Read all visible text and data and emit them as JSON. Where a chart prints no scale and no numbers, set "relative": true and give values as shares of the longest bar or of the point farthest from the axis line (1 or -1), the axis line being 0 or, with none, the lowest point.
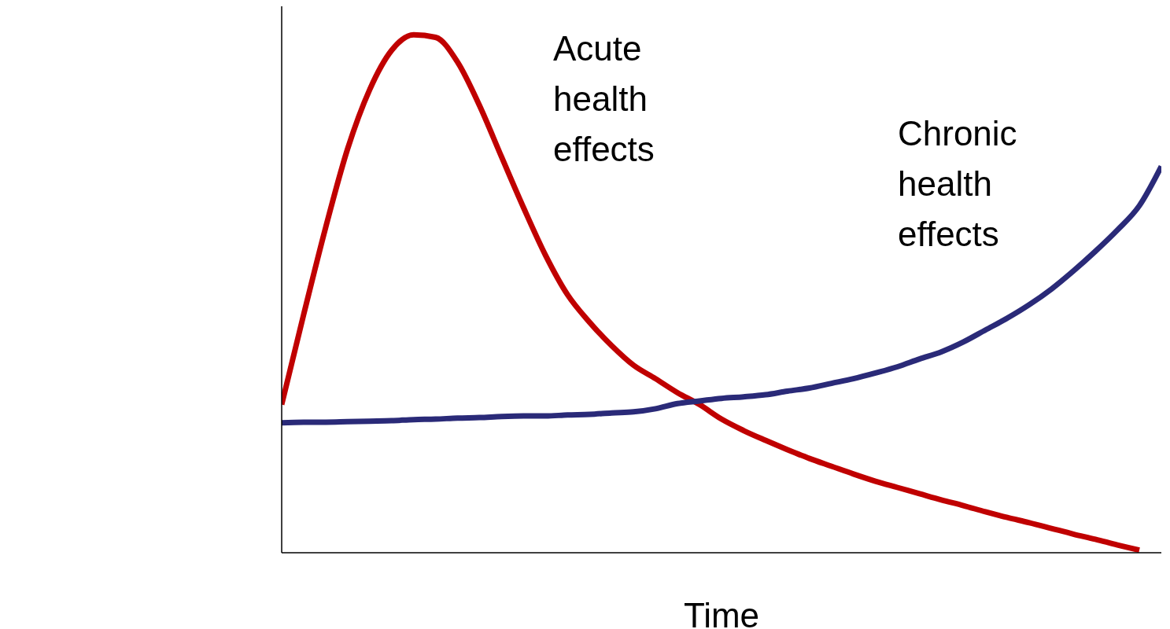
{
  "chart_data": {
    "type": "line",
    "relative": true,
    "xlabel": "Time",
    "categories": [
      null,
      null,
      null,
      null,
      null,
      null,
      null,
      null,
      null,
      null,
      null,
      null,
      null,
      null,
      null,
      null,
      null,
      null,
      null,
      null,
      null,
      null,
      null,
      null,
      null,
      null,
      null,
      null,
      null,
      null,
      null,
      null,
      null,
      null,
      null,
      null,
      null,
      null,
      null,
      null,
      null
    ],
    "series": [
      {
        "name": "Acute health effects",
        "color": "#c00000",
        "values": [
          0.286,
          0.46,
          0.628,
          0.78,
          0.894,
          0.97,
          1.0,
          0.995,
          0.947,
          0.863,
          0.764,
          0.666,
          0.574,
          0.498,
          0.445,
          0.4,
          0.362,
          0.336,
          0.309,
          0.286,
          0.258,
          0.236,
          0.217,
          0.199,
          0.182,
          0.167,
          0.152,
          0.138,
          0.126,
          0.114,
          0.102,
          0.091,
          0.079,
          0.068,
          0.058,
          0.047,
          0.036,
          0.026,
          0.015,
          0.005,
          null
        ]
      },
      {
        "name": "Chronic health effects",
        "color": "#2a2a78",
        "values": [
          0.251,
          0.252,
          0.252,
          0.253,
          0.254,
          0.255,
          0.257,
          0.258,
          0.26,
          0.261,
          0.263,
          0.264,
          0.264,
          0.266,
          0.267,
          0.27,
          0.272,
          0.278,
          0.288,
          0.293,
          0.298,
          0.301,
          0.305,
          0.312,
          0.318,
          0.327,
          0.336,
          0.347,
          0.359,
          0.374,
          0.388,
          0.407,
          0.43,
          0.453,
          0.479,
          0.509,
          0.544,
          0.582,
          0.623,
          0.67,
          0.746
        ]
      }
    ],
    "grid": false,
    "legend": false,
    "marker": "none",
    "line_style": "solid"
  }
}
